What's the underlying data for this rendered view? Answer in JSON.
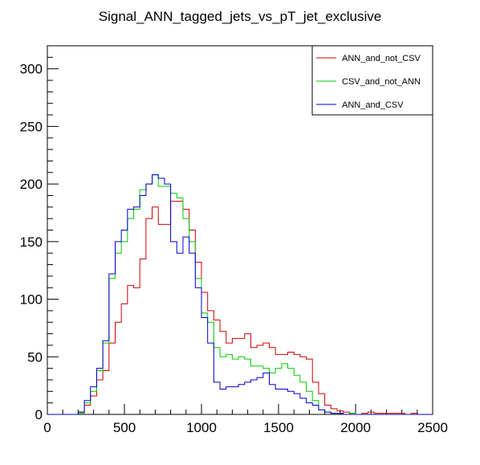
{
  "chart_data": {
    "type": "line",
    "title": "Signal_ANN_tagged_jets_vs_pT_jet_exclusive",
    "xlabel": "",
    "ylabel": "",
    "xlim": [
      0,
      2500
    ],
    "ylim": [
      0,
      320
    ],
    "x_ticks": [
      0,
      500,
      1000,
      1500,
      2000,
      2500
    ],
    "y_ticks": [
      0,
      50,
      100,
      150,
      200,
      250,
      300
    ],
    "bin_width": 40,
    "x_start": 0,
    "grid": false,
    "legend_position": "top-right",
    "series": [
      {
        "name": "ANN_and_not_CSV",
        "color": "#cc0000",
        "values": [
          0,
          0,
          0,
          0,
          0,
          2,
          8,
          16,
          30,
          38,
          62,
          80,
          96,
          112,
          110,
          135,
          170,
          180,
          165,
          165,
          185,
          185,
          178,
          160,
          132,
          106,
          90,
          82,
          72,
          62,
          66,
          66,
          70,
          58,
          60,
          62,
          58,
          52,
          52,
          54,
          52,
          50,
          48,
          28,
          18,
          8,
          5,
          3,
          2,
          1,
          0,
          1,
          2,
          1,
          1,
          1,
          1,
          1,
          0,
          1,
          0,
          0,
          0
        ]
      },
      {
        "name": "CSV_and_not_ANN",
        "color": "#00cc00",
        "values": [
          0,
          0,
          0,
          0,
          0,
          1,
          10,
          20,
          38,
          62,
          118,
          140,
          150,
          170,
          178,
          195,
          200,
          208,
          198,
          198,
          192,
          188,
          170,
          150,
          118,
          88,
          80,
          58,
          50,
          52,
          48,
          50,
          48,
          42,
          42,
          40,
          36,
          40,
          44,
          40,
          34,
          28,
          20,
          12,
          4,
          2,
          1,
          1,
          0,
          1,
          0,
          0,
          0,
          0,
          0,
          0,
          0,
          0,
          0,
          0,
          0,
          0,
          0
        ]
      },
      {
        "name": "ANN_and_CSV",
        "color": "#0000cc",
        "values": [
          0,
          0,
          0,
          0,
          0,
          2,
          12,
          24,
          40,
          64,
          122,
          150,
          160,
          178,
          180,
          190,
          200,
          208,
          205,
          200,
          150,
          140,
          154,
          140,
          110,
          84,
          62,
          28,
          22,
          24,
          24,
          26,
          28,
          30,
          32,
          36,
          26,
          22,
          22,
          20,
          18,
          14,
          10,
          8,
          4,
          2,
          1,
          1,
          0,
          0,
          0,
          0,
          0,
          0,
          0,
          0,
          0,
          0,
          0,
          0,
          0,
          0,
          0
        ]
      }
    ]
  }
}
